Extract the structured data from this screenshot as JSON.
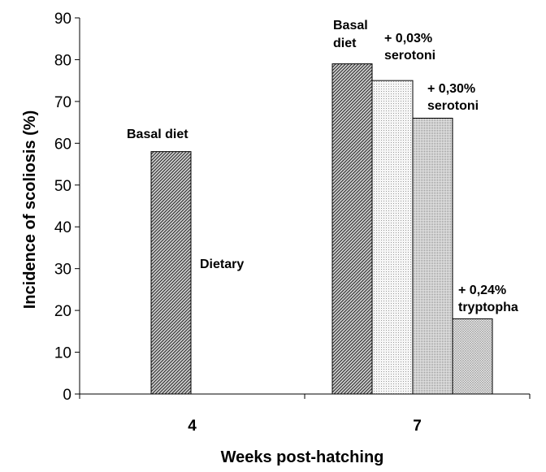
{
  "chart_data": {
    "type": "bar",
    "xlabel": "Weeks post-hatching",
    "ylabel": "Incidence of scoliosis (%)",
    "ylim": [
      0,
      90
    ],
    "yticks": [
      0,
      10,
      20,
      30,
      40,
      50,
      60,
      70,
      80,
      90
    ],
    "categories": [
      "4",
      "7"
    ],
    "bars": [
      {
        "category": "4",
        "value": 58,
        "pattern": "dark-hatch"
      },
      {
        "category": "7",
        "value": 79,
        "pattern": "dark-hatch"
      },
      {
        "category": "7",
        "value": 75,
        "pattern": "light-dots"
      },
      {
        "category": "7",
        "value": 66,
        "pattern": "medium-dots"
      },
      {
        "category": "7",
        "value": 18,
        "pattern": "fine-grid"
      }
    ],
    "annotations": [
      {
        "lines": [
          "Basal diet"
        ]
      },
      {
        "lines": [
          "Dietary"
        ]
      },
      {
        "lines": [
          "Basal",
          "diet"
        ]
      },
      {
        "lines": [
          "+ 0,03%",
          "serotoni"
        ]
      },
      {
        "lines": [
          "+ 0,30%",
          "serotoni"
        ]
      },
      {
        "lines": [
          "+ 0,24%",
          "tryptopha"
        ]
      }
    ],
    "grid": false,
    "legend": "none"
  }
}
